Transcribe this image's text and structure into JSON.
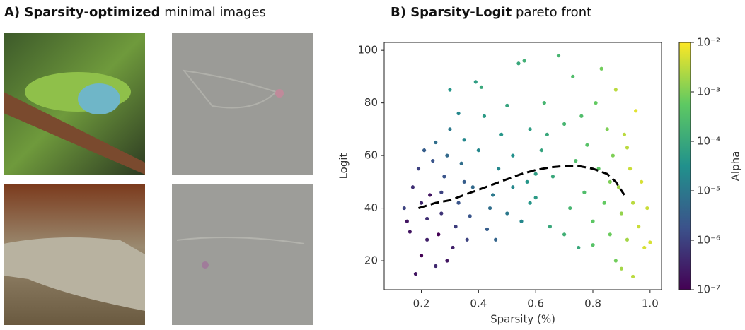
{
  "panel_a": {
    "title": {
      "bold": "A) Sparsity-optimized",
      "normal": "minimal images"
    }
  },
  "chart_data": {
    "type": "scatter",
    "title": {
      "bold": "B) Sparsity-Logit",
      "normal": "pareto front"
    },
    "x_label": "Sparsity (%)",
    "y_label": "Logit",
    "colorbar_label": "Alpha",
    "xlim": [
      0.07,
      1.04
    ],
    "ylim": [
      9,
      103
    ],
    "xticks": [
      0.2,
      0.4,
      0.6,
      0.8,
      {
        "value": 1,
        "label": "1.0"
      }
    ],
    "yticks": [
      20,
      40,
      60,
      80,
      100
    ],
    "clim": [
      1e-07,
      0.01
    ],
    "color_scale": "log",
    "colormap": [
      "#440154",
      "#3b528b",
      "#21918c",
      "#5ec962",
      "#fde725"
    ],
    "cticks": [
      {
        "value": 1e-07,
        "label": "10⁻⁷"
      },
      {
        "value": 1e-06,
        "label": "10⁻⁶"
      },
      {
        "value": 1e-05,
        "label": "10⁻⁵"
      },
      {
        "value": 0.0001,
        "label": "10⁻⁴"
      },
      {
        "value": 0.001,
        "label": "10⁻³"
      },
      {
        "value": 0.01,
        "label": "10⁻²"
      }
    ],
    "points": [
      [
        0.18,
        15,
        2e-07
      ],
      [
        0.2,
        22,
        1e-07
      ],
      [
        0.22,
        28,
        3e-07
      ],
      [
        0.15,
        35,
        2e-07
      ],
      [
        0.17,
        48,
        5e-07
      ],
      [
        0.14,
        40,
        1e-06
      ],
      [
        0.19,
        55,
        1e-06
      ],
      [
        0.21,
        62,
        3e-06
      ],
      [
        0.23,
        45,
        2e-07
      ],
      [
        0.25,
        18,
        4e-07
      ],
      [
        0.26,
        30,
        1e-07
      ],
      [
        0.27,
        38,
        6e-07
      ],
      [
        0.28,
        52,
        2e-06
      ],
      [
        0.29,
        60,
        5e-06
      ],
      [
        0.3,
        70,
        1e-05
      ],
      [
        0.31,
        25,
        3e-07
      ],
      [
        0.32,
        33,
        8e-07
      ],
      [
        0.33,
        42,
        2e-06
      ],
      [
        0.34,
        57,
        6e-06
      ],
      [
        0.35,
        66,
        2e-05
      ],
      [
        0.24,
        58,
        2e-06
      ],
      [
        0.22,
        36,
        5e-07
      ],
      [
        0.29,
        20,
        2e-07
      ],
      [
        0.36,
        28,
        1e-06
      ],
      [
        0.38,
        48,
        5e-06
      ],
      [
        0.4,
        62,
        2e-05
      ],
      [
        0.42,
        75,
        5e-05
      ],
      [
        0.41,
        86,
        0.0001
      ],
      [
        0.39,
        88,
        6e-05
      ],
      [
        0.37,
        37,
        2e-06
      ],
      [
        0.43,
        32,
        3e-06
      ],
      [
        0.45,
        45,
        1e-05
      ],
      [
        0.47,
        55,
        2e-05
      ],
      [
        0.48,
        68,
        4e-05
      ],
      [
        0.5,
        79,
        8e-05
      ],
      [
        0.52,
        60,
        3e-05
      ],
      [
        0.5,
        38,
        1e-05
      ],
      [
        0.46,
        28,
        4e-06
      ],
      [
        0.55,
        35,
        2e-05
      ],
      [
        0.57,
        50,
        4e-05
      ],
      [
        0.54,
        95,
        0.0001
      ],
      [
        0.56,
        96,
        0.00015
      ],
      [
        0.58,
        70,
        6e-05
      ],
      [
        0.6,
        44,
        5e-05
      ],
      [
        0.62,
        62,
        8e-05
      ],
      [
        0.63,
        80,
        0.0002
      ],
      [
        0.65,
        33,
        0.0001
      ],
      [
        0.66,
        52,
        0.0001
      ],
      [
        0.68,
        98,
        0.0002
      ],
      [
        0.7,
        72,
        0.0002
      ],
      [
        0.72,
        40,
        0.0002
      ],
      [
        0.73,
        90,
        0.0003
      ],
      [
        0.74,
        58,
        0.0003
      ],
      [
        0.75,
        25,
        0.0001
      ],
      [
        0.77,
        46,
        0.0003
      ],
      [
        0.78,
        64,
        0.0004
      ],
      [
        0.8,
        35,
        0.0005
      ],
      [
        0.81,
        80,
        0.0006
      ],
      [
        0.82,
        55,
        0.0005
      ],
      [
        0.83,
        93,
        0.0008
      ],
      [
        0.84,
        42,
        0.0006
      ],
      [
        0.85,
        70,
        0.001
      ],
      [
        0.86,
        30,
        0.0007
      ],
      [
        0.87,
        60,
        0.001
      ],
      [
        0.88,
        85,
        0.003
      ],
      [
        0.88,
        20,
        0.0008
      ],
      [
        0.89,
        48,
        0.002
      ],
      [
        0.9,
        38,
        0.0015
      ],
      [
        0.91,
        68,
        0.003
      ],
      [
        0.92,
        28,
        0.002
      ],
      [
        0.93,
        55,
        0.004
      ],
      [
        0.94,
        42,
        0.003
      ],
      [
        0.95,
        77,
        0.006
      ],
      [
        0.96,
        33,
        0.004
      ],
      [
        0.97,
        50,
        0.005
      ],
      [
        0.98,
        25,
        0.005
      ],
      [
        0.99,
        40,
        0.004
      ],
      [
        1.0,
        27,
        0.005
      ],
      [
        0.94,
        14,
        0.003
      ],
      [
        0.9,
        17,
        0.002
      ],
      [
        0.8,
        26,
        0.0004
      ],
      [
        0.7,
        30,
        0.00015
      ],
      [
        0.6,
        53,
        6e-05
      ],
      [
        0.35,
        50,
        3e-06
      ],
      [
        0.27,
        46,
        1e-06
      ],
      [
        0.2,
        42,
        4e-07
      ],
      [
        0.16,
        31,
        2e-07
      ],
      [
        0.25,
        65,
        6e-06
      ],
      [
        0.33,
        76,
        2e-05
      ],
      [
        0.3,
        85,
        4e-05
      ],
      [
        0.44,
        40,
        6e-06
      ],
      [
        0.52,
        48,
        2e-05
      ],
      [
        0.58,
        42,
        4e-05
      ],
      [
        0.64,
        68,
        0.0001
      ],
      [
        0.76,
        75,
        0.0003
      ],
      [
        0.86,
        50,
        0.001
      ],
      [
        0.92,
        63,
        0.003
      ]
    ],
    "pareto": {
      "color": "#000000",
      "x": [
        0.19,
        0.25,
        0.3,
        0.35,
        0.4,
        0.45,
        0.5,
        0.55,
        0.6,
        0.65,
        0.7,
        0.75,
        0.8,
        0.85,
        0.88,
        0.91
      ],
      "y": [
        40,
        42,
        43,
        45,
        47,
        49,
        51,
        53,
        54.5,
        55.5,
        56,
        56,
        55,
        53,
        50,
        45
      ]
    }
  }
}
